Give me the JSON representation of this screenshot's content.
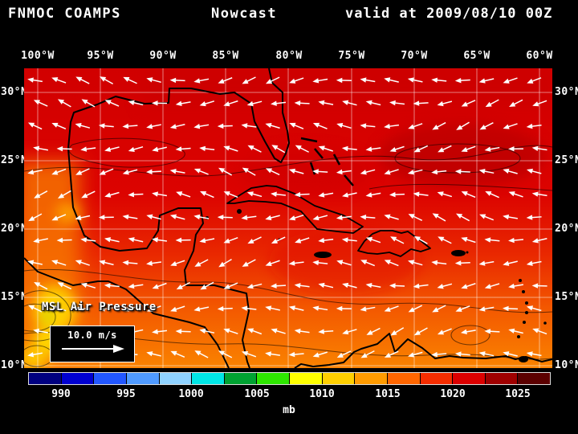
{
  "title_bar": {
    "model": "FNMOC COAMPS",
    "product": "Nowcast",
    "valid_time": "valid at 2009/08/10 00Z"
  },
  "map": {
    "lon_labels": [
      "100°W",
      "95°W",
      "90°W",
      "85°W",
      "80°W",
      "75°W",
      "70°W",
      "65°W",
      "60°W"
    ],
    "lat_labels": [
      "30°N",
      "25°N",
      "20°N",
      "15°N",
      "10°N"
    ],
    "overlay": {
      "field_label": "MSL Air Pressure",
      "wind_scale_label": "10.0 m/s"
    }
  },
  "colorbar": {
    "unit_label": "mb",
    "tick_labels": [
      "990",
      "995",
      "1000",
      "1005",
      "1010",
      "1015",
      "1020",
      "1025"
    ],
    "range_mb": [
      987.5,
      1027.5
    ],
    "cell_colors": [
      "#000080",
      "#0000d0",
      "#2257ff",
      "#4f9aff",
      "#8fd2ff",
      "#00e6e6",
      "#00a232",
      "#2ee600",
      "#ffff00",
      "#ffcf00",
      "#ff9b00",
      "#ff6600",
      "#f52d00",
      "#dc0000",
      "#a00000",
      "#5c0000"
    ]
  },
  "style": {
    "background": "#000000",
    "text_color": "#ffffff",
    "arrow_color": "#ffffff",
    "coastline_color": "#000000",
    "gridline_color": "rgba(255,255,255,0.5)",
    "field_gradient_top_to_bottom": [
      "#d10000",
      "#dc0300",
      "#e92800",
      "#f35800",
      "#fa8300"
    ]
  },
  "chart_data": {
    "type": "heatmap",
    "title": "FNMOC COAMPS Nowcast valid at 2009/08/10 00Z",
    "field": "MSL Air Pressure",
    "units": "mb",
    "region": {
      "lon_range": [
        "101°W",
        "59°W"
      ],
      "lat_range": [
        "10°N",
        "32°N"
      ]
    },
    "lon_ticks": [
      "100°W",
      "95°W",
      "90°W",
      "85°W",
      "80°W",
      "75°W",
      "70°W",
      "65°W",
      "60°W"
    ],
    "lat_ticks": [
      "30°N",
      "25°N",
      "20°N",
      "15°N",
      "10°N"
    ],
    "colorbar_range_mb": [
      987.5,
      1027.5
    ],
    "colorbar_tick_values_mb": [
      990,
      995,
      1000,
      1005,
      1010,
      1015,
      1020,
      1025
    ],
    "approx_pressure_mb": {
      "lons": [
        "100W",
        "95W",
        "90W",
        "85W",
        "80W",
        "75W",
        "70W",
        "65W",
        "60W"
      ],
      "lats": [
        "30N",
        "25N",
        "20N",
        "15N",
        "10N"
      ],
      "values": [
        [
          1013,
          1015,
          1017,
          1017,
          1017,
          1018,
          1018,
          1019,
          1019
        ],
        [
          1011,
          1014,
          1016,
          1017,
          1016,
          1017,
          1017,
          1018,
          1018
        ],
        [
          1010,
          1012,
          1014,
          1015,
          1015,
          1016,
          1016,
          1016,
          1016
        ],
        [
          1008,
          1010,
          1012,
          1013,
          1013,
          1014,
          1014,
          1014,
          1014
        ],
        [
          1007,
          1009,
          1011,
          1012,
          1012,
          1012,
          1013,
          1013,
          1013
        ]
      ],
      "summary": "Red (~1015-1020 mb) across the Gulf of Mexico, Bahamas and central Atlantic; orange (~1010-1015 mb) south of about 15°N; local yellow lows (~1005-1010 mb) along the far west edge near the Pacific coast of Mexico/Central America"
    },
    "wind_overlay": {
      "type": "vector_arrows",
      "reference_speed": "10.0 m/s",
      "predominant_flow": "easterly trade winds, arrows pointing toward the west"
    },
    "grid": "white 5-degree graticule on, colorbar legend bottom"
  }
}
